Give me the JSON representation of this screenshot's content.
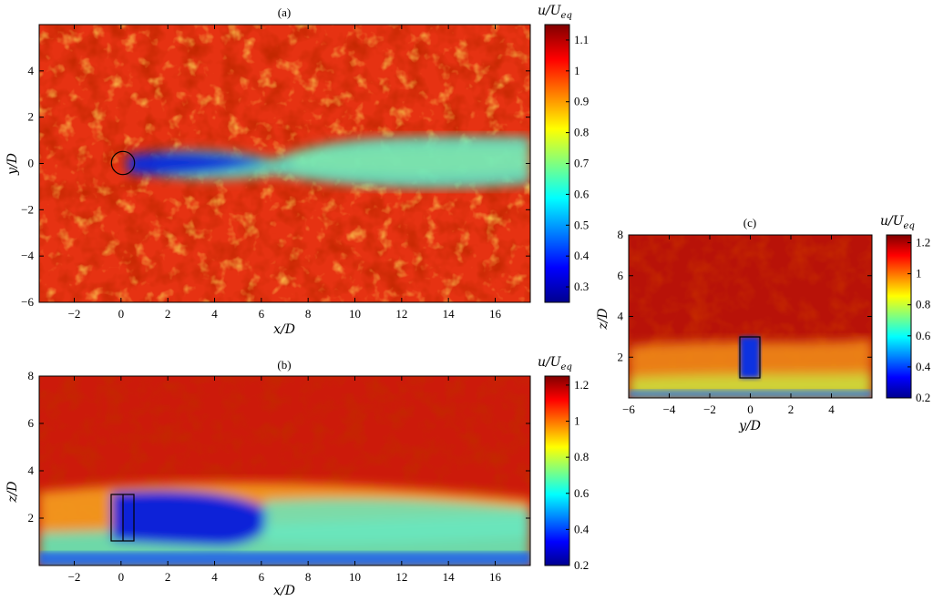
{
  "chart_data": [
    {
      "type": "heatmap",
      "title": "(a)",
      "xlabel": "x/D",
      "ylabel": "y/D",
      "xlim": [
        -3.5,
        17.5
      ],
      "ylim": [
        -6,
        6
      ],
      "xticks": [
        "−2",
        "0",
        "2",
        "4",
        "6",
        "8",
        "10",
        "12",
        "14",
        "16"
      ],
      "yticks": [
        "−6",
        "−4",
        "−2",
        "0",
        "2",
        "4"
      ],
      "colorbar": {
        "label": "u/U_eq",
        "label_main": "u/U",
        "label_sub": "eq",
        "range": [
          0.25,
          1.15
        ],
        "ticks": [
          "0.3",
          "0.4",
          "0.5",
          "0.6",
          "0.7",
          "0.8",
          "0.9",
          "1",
          "1.1"
        ]
      },
      "colormap": "jet",
      "annotations": [
        {
          "shape": "circle",
          "center": [
            0,
            0
          ],
          "diameter": 1
        }
      ]
    },
    {
      "type": "heatmap",
      "title": "(b)",
      "xlabel": "x/D",
      "ylabel": "z/D",
      "xlim": [
        -3.5,
        17.5
      ],
      "ylim": [
        0,
        8
      ],
      "xticks": [
        "−2",
        "0",
        "2",
        "4",
        "6",
        "8",
        "10",
        "12",
        "14",
        "16"
      ],
      "yticks": [
        "2",
        "4",
        "6",
        "8"
      ],
      "colorbar": {
        "label": "u/U_eq",
        "label_main": "u/U",
        "label_sub": "eq",
        "range": [
          0.2,
          1.25
        ],
        "ticks": [
          "0.2",
          "0.4",
          "0.6",
          "0.8",
          "1",
          "1.2"
        ]
      },
      "colormap": "jet",
      "annotations": [
        {
          "shape": "rectangle",
          "x": [
            -0.5,
            0.5
          ],
          "z": [
            1,
            3
          ]
        }
      ]
    },
    {
      "type": "heatmap",
      "title": "(c)",
      "xlabel": "y/D",
      "ylabel": "z/D",
      "xlim": [
        -6,
        6
      ],
      "ylim": [
        0,
        8
      ],
      "xticks": [
        "−6",
        "−4",
        "−2",
        "0",
        "2",
        "4"
      ],
      "yticks": [
        "2",
        "4",
        "6",
        "8"
      ],
      "colorbar": {
        "label": "u/U_eq",
        "label_main": "u/U",
        "label_sub": "eq",
        "range": [
          0.2,
          1.25
        ],
        "ticks": [
          "0.2",
          "0.4",
          "0.6",
          "0.8",
          "1",
          "1.2"
        ]
      },
      "colormap": "jet",
      "annotations": [
        {
          "shape": "rectangle",
          "y": [
            -0.5,
            0.5
          ],
          "z": [
            1,
            3
          ]
        }
      ]
    }
  ]
}
